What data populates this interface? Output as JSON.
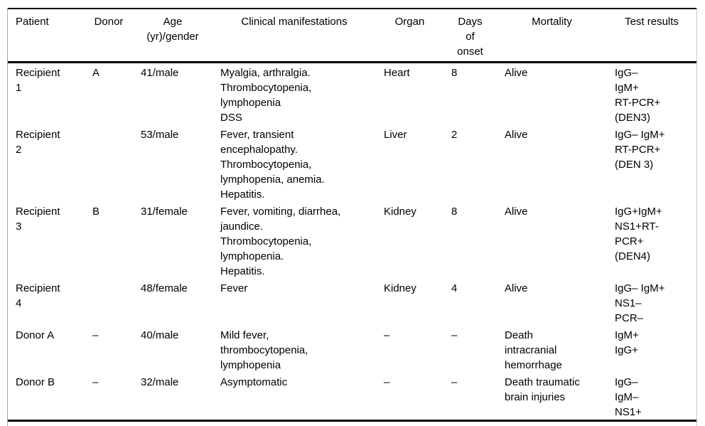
{
  "table": {
    "columns": {
      "patient": "Patient",
      "donor": "Donor",
      "age": "Age\n(yr)/gender",
      "clinical": "Clinical manifestations",
      "organ": "Organ",
      "days": "Days\nof\nonset",
      "mortality": "Mortality",
      "test": "Test results"
    },
    "rows": [
      {
        "patient": "Recipient\n1",
        "donor": "A",
        "age": "41/male",
        "clinical": "Myalgia, arthralgia.\nThrombocytopenia,\nlymphopenia\nDSS",
        "organ": "Heart",
        "days": "8",
        "mortality": "Alive",
        "test": "IgG–\nIgM+\nRT-PCR+\n(DEN3)"
      },
      {
        "patient": "Recipient\n2",
        "donor": "",
        "age": "53/male",
        "clinical": "Fever, transient\nencephalopathy.\nThrombocytopenia,\nlymphopenia, anemia.\nHepatitis.",
        "organ": "Liver",
        "days": "2",
        "mortality": "Alive",
        "test": "IgG– IgM+\nRT-PCR+\n(DEN 3)"
      },
      {
        "patient": "Recipient\n3",
        "donor": "B",
        "age": "31/female",
        "clinical": "Fever, vomiting, diarrhea,\njaundice.\nThrombocytopenia,\nlymphopenia.\nHepatitis.",
        "organ": "Kidney",
        "days": "8",
        "mortality": "Alive",
        "test": "IgG+IgM+\nNS1+RT-\nPCR+\n(DEN4)"
      },
      {
        "patient": "Recipient\n4",
        "donor": "",
        "age": "48/female",
        "clinical": "Fever",
        "organ": "Kidney",
        "days": "4",
        "mortality": "Alive",
        "test": "IgG– IgM+\nNS1–\nPCR–"
      },
      {
        "patient": "Donor A",
        "donor": "–",
        "age": "40/male",
        "clinical": "Mild fever,\nthrombocytopenia,\nlymphopenia",
        "organ": "–",
        "days": "–",
        "mortality": "Death\nintracranial\nhemorrhage",
        "test": "IgM+\nIgG+"
      },
      {
        "patient": "Donor B",
        "donor": "–",
        "age": "32/male",
        "clinical": "Asymptomatic",
        "organ": "–",
        "days": "–",
        "mortality": "Death traumatic\nbrain injuries",
        "test": "IgG–\nIgM–\nNS1+"
      }
    ]
  }
}
